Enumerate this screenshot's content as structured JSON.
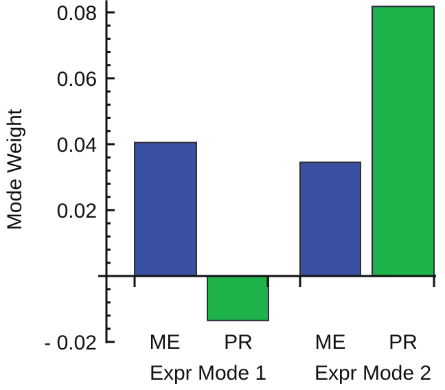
{
  "chart_data": {
    "type": "bar",
    "ylabel": "Mode Weight",
    "ylim": [
      -0.02,
      0.082
    ],
    "yticks": [
      {
        "value": -0.02,
        "label": "- 0.02"
      },
      {
        "value": 0.02,
        "label": "0.02"
      },
      {
        "value": 0.04,
        "label": "0.04"
      },
      {
        "value": 0.06,
        "label": "0.06"
      },
      {
        "value": 0.08,
        "label": "0.08"
      }
    ],
    "groups": [
      {
        "label": "Expr Mode 1",
        "categories": [
          "ME",
          "PR"
        ]
      },
      {
        "label": "Expr Mode 2",
        "categories": [
          "ME",
          "PR"
        ]
      }
    ],
    "bars": [
      {
        "category": "ME",
        "group": "Expr Mode 1",
        "value": 0.0405,
        "color": "#3a50a0"
      },
      {
        "category": "PR",
        "group": "Expr Mode 1",
        "value": -0.0135,
        "color": "#1fb14a"
      },
      {
        "category": "ME",
        "group": "Expr Mode 2",
        "value": 0.0345,
        "color": "#3a50a0"
      },
      {
        "category": "PR",
        "group": "Expr Mode 2",
        "value": 0.0818,
        "color": "#1fb14a"
      }
    ],
    "grid": false,
    "legend": "none"
  }
}
